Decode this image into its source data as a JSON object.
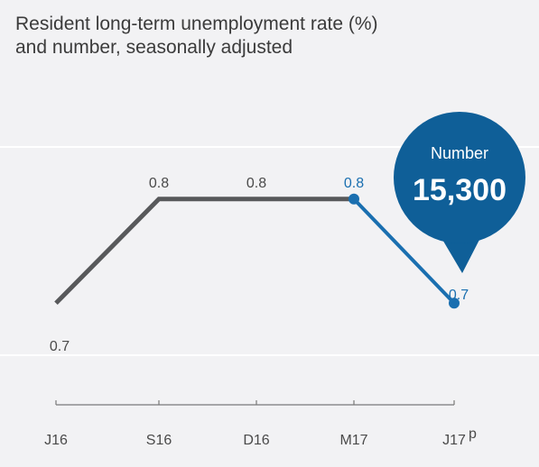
{
  "chart_data": {
    "type": "line",
    "title": "Resident long-term unemployment rate (%) and number, seasonally adjusted",
    "title_lines": [
      "Resident long-term unemployment rate (%)",
      "and number, seasonally adjusted"
    ],
    "categories": [
      "J16",
      "S16",
      "D16",
      "M17",
      "J17"
    ],
    "x_tick_labels": [
      "J16",
      "S16",
      "D16",
      "M17",
      "J17"
    ],
    "last_tick_superscript": "p",
    "values": [
      0.7,
      0.8,
      0.8,
      0.8,
      0.7
    ],
    "data_labels": [
      "0.7",
      "0.8",
      "0.8",
      "0.8",
      "0.7"
    ],
    "highlight_from_index": 3,
    "ylim": [
      0.65,
      0.85
    ],
    "gridlines": [
      0.65,
      0.85
    ],
    "colors": {
      "base_line": "#58595b",
      "highlight": "#1a6fb0",
      "grid": "#ffffff",
      "axis": "#7a7a7a",
      "label_text": "#4a4a4a",
      "background": "#f2f2f4"
    },
    "callout": {
      "label": "Number",
      "value": "15,300",
      "color": "#0f5f98"
    }
  }
}
